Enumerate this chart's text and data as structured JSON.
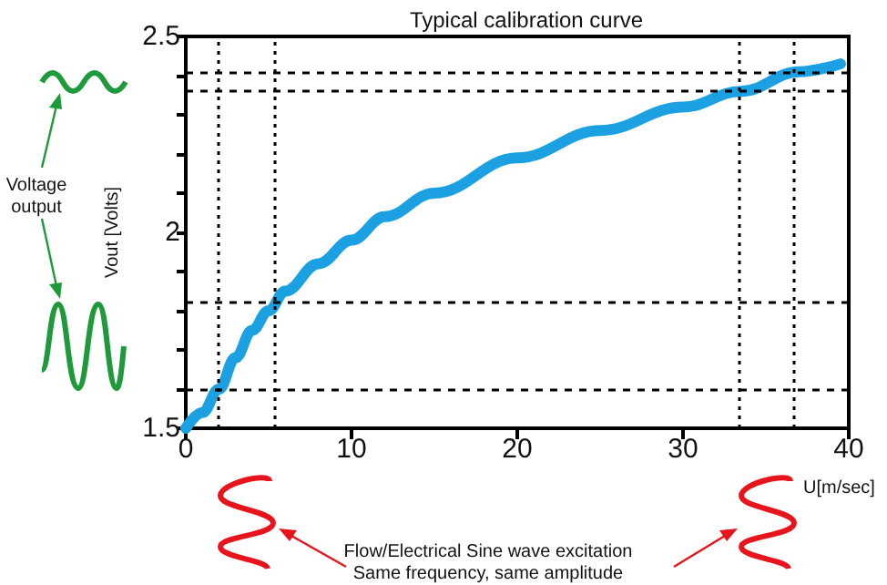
{
  "chart_data": {
    "type": "line",
    "title": "Typical calibration curve",
    "xlabel": "U[m/sec]",
    "ylabel": "Vout [Volts]",
    "annotations": [
      "Voltage\noutput",
      "Flow/Electrical Sine wave excitation\nSame frequency, same amplitude"
    ],
    "x": [
      0,
      1,
      2,
      3,
      4,
      5,
      6,
      8,
      10,
      12,
      15,
      20,
      25,
      30,
      33.5,
      37,
      39.5
    ],
    "series": [
      {
        "color": "#1ba1e2",
        "values": [
          1.5,
          1.54,
          1.6,
          1.68,
          1.75,
          1.8,
          1.85,
          1.92,
          1.98,
          2.04,
          2.1,
          2.19,
          2.26,
          2.32,
          2.36,
          2.41,
          2.43
        ]
      }
    ],
    "xlim": [
      0,
      40
    ],
    "xticks": [
      0,
      10,
      20,
      30,
      40
    ],
    "ylim": [
      1.5,
      2.5
    ],
    "yticks": [
      1.5,
      {
        "value": 1.6,
        "label": null
      },
      {
        "value": 1.7,
        "label": null
      },
      {
        "value": 1.8,
        "label": null
      },
      {
        "value": 1.9,
        "label": null
      },
      2.0,
      {
        "value": 2.1,
        "label": null
      },
      {
        "value": 2.2,
        "label": null
      },
      {
        "value": 2.3,
        "label": null
      },
      {
        "value": 2.4,
        "label": null
      },
      2.5
    ],
    "ref_lines": [
      {
        "axis": "x",
        "value": 2,
        "line_style": "dotted",
        "color": "#000000"
      },
      {
        "axis": "x",
        "value": 5.4,
        "line_style": "dotted",
        "color": "#000000"
      },
      {
        "axis": "x",
        "value": 33.4,
        "line_style": "dotted",
        "color": "#000000"
      },
      {
        "axis": "x",
        "value": 36.7,
        "line_style": "dotted",
        "color": "#000000"
      },
      {
        "axis": "y",
        "value": 1.6,
        "line_style": "dashed",
        "color": "#000000"
      },
      {
        "axis": "y",
        "value": 1.82,
        "line_style": "dashed",
        "color": "#000000"
      },
      {
        "axis": "y",
        "value": 2.36,
        "line_style": "dashed",
        "color": "#000000"
      },
      {
        "axis": "y",
        "value": 2.41,
        "line_style": "dashed",
        "color": "#000000"
      }
    ],
    "grid": false,
    "marker": "none",
    "line_style": "solid"
  }
}
